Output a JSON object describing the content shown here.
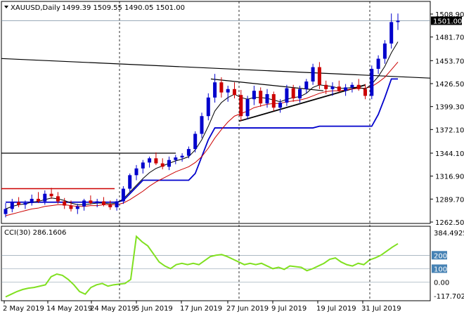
{
  "symbol_label": "XAUUSD,Daily",
  "ohlc_label": "1499.39 1509.55 1490.05 1501.00",
  "current_price": "1501.00",
  "cci_label": "CCI(30) 286.1606",
  "price_axis": [
    "1508.90",
    "1481.70",
    "1453.70",
    "1426.50",
    "1399.30",
    "1372.10",
    "1344.10",
    "1316.90",
    "1289.70",
    "1262.50"
  ],
  "cci_axis": [
    "384.4925",
    "200",
    "100",
    "0.00",
    "-117.702"
  ],
  "date_axis": [
    "2 May 2019",
    "14 May 2019",
    "24 May 2019",
    "5 Jun 2019",
    "17 Jun 2019",
    "27 Jun 2019",
    "9 Jul 2019",
    "19 Jul 2019",
    "31 Jul 2019"
  ],
  "colors": {
    "bull": "#0000cc",
    "bear": "#cc0000",
    "cci": "#80e020",
    "ma_fast": "#000000",
    "ma_slow": "#cc0000",
    "support": "#0000cc",
    "hline": "#000000",
    "redline": "#cc0000"
  },
  "chart_data": [
    {
      "type": "candlestick",
      "title": "XAUUSD,Daily",
      "ylim": [
        1262.5,
        1508.9
      ],
      "x": [
        "2 May 2019",
        "14 May 2019",
        "24 May 2019",
        "5 Jun 2019",
        "17 Jun 2019",
        "27 Jun 2019",
        "9 Jul 2019",
        "19 Jul 2019",
        "31 Jul 2019"
      ],
      "candles": [
        [
          1272,
          1285,
          1268,
          1278
        ],
        [
          1278,
          1290,
          1274,
          1286
        ],
        [
          1286,
          1292,
          1280,
          1283
        ],
        [
          1283,
          1288,
          1278,
          1285
        ],
        [
          1285,
          1295,
          1282,
          1290
        ],
        [
          1290,
          1298,
          1285,
          1287
        ],
        [
          1287,
          1300,
          1283,
          1296
        ],
        [
          1296,
          1303,
          1290,
          1293
        ],
        [
          1293,
          1298,
          1284,
          1287
        ],
        [
          1287,
          1291,
          1278,
          1282
        ],
        [
          1282,
          1288,
          1275,
          1278
        ],
        [
          1278,
          1284,
          1272,
          1281
        ],
        [
          1281,
          1290,
          1276,
          1288
        ],
        [
          1288,
          1294,
          1283,
          1285
        ],
        [
          1285,
          1290,
          1280,
          1287
        ],
        [
          1287,
          1292,
          1281,
          1283
        ],
        [
          1283,
          1288,
          1277,
          1280
        ],
        [
          1280,
          1290,
          1276,
          1287
        ],
        [
          1287,
          1305,
          1284,
          1302
        ],
        [
          1302,
          1320,
          1298,
          1318
        ],
        [
          1318,
          1330,
          1312,
          1326
        ],
        [
          1326,
          1336,
          1320,
          1333
        ],
        [
          1333,
          1340,
          1327,
          1338
        ],
        [
          1338,
          1345,
          1330,
          1332
        ],
        [
          1332,
          1338,
          1325,
          1328
        ],
        [
          1328,
          1340,
          1324,
          1336
        ],
        [
          1336,
          1342,
          1331,
          1339
        ],
        [
          1339,
          1344,
          1334,
          1341
        ],
        [
          1341,
          1352,
          1338,
          1349
        ],
        [
          1349,
          1370,
          1345,
          1367
        ],
        [
          1367,
          1392,
          1362,
          1388
        ],
        [
          1388,
          1415,
          1383,
          1410
        ],
        [
          1410,
          1438,
          1404,
          1428
        ],
        [
          1428,
          1434,
          1410,
          1416
        ],
        [
          1416,
          1424,
          1405,
          1420
        ],
        [
          1420,
          1428,
          1409,
          1413
        ],
        [
          1413,
          1419,
          1382,
          1388
        ],
        [
          1388,
          1412,
          1384,
          1408
        ],
        [
          1408,
          1424,
          1401,
          1418
        ],
        [
          1418,
          1422,
          1399,
          1403
        ],
        [
          1403,
          1420,
          1398,
          1414
        ],
        [
          1414,
          1417,
          1394,
          1398
        ],
        [
          1398,
          1408,
          1392,
          1404
        ],
        [
          1404,
          1425,
          1400,
          1421
        ],
        [
          1421,
          1425,
          1405,
          1409
        ],
        [
          1409,
          1424,
          1404,
          1420
        ],
        [
          1420,
          1432,
          1415,
          1429
        ],
        [
          1429,
          1450,
          1425,
          1446
        ],
        [
          1446,
          1452,
          1420,
          1425
        ],
        [
          1425,
          1430,
          1414,
          1420
        ],
        [
          1420,
          1428,
          1412,
          1423
        ],
        [
          1423,
          1430,
          1416,
          1418
        ],
        [
          1418,
          1426,
          1412,
          1422
        ],
        [
          1422,
          1428,
          1416,
          1425
        ],
        [
          1425,
          1432,
          1418,
          1420
        ],
        [
          1420,
          1426,
          1408,
          1412
        ],
        [
          1412,
          1448,
          1408,
          1444
        ],
        [
          1444,
          1460,
          1438,
          1456
        ],
        [
          1456,
          1478,
          1450,
          1474
        ],
        [
          1474,
          1509.55,
          1468,
          1499.39
        ],
        [
          1499.39,
          1509.55,
          1490.05,
          1501
        ]
      ],
      "ma_fast": [
        1278,
        1281,
        1283,
        1284,
        1286,
        1287,
        1289,
        1291,
        1290,
        1288,
        1285,
        1283,
        1283,
        1284,
        1285,
        1285,
        1284,
        1285,
        1290,
        1298,
        1306,
        1314,
        1321,
        1326,
        1329,
        1332,
        1335,
        1337,
        1340,
        1348,
        1360,
        1376,
        1394,
        1404,
        1410,
        1414,
        1410,
        1408,
        1410,
        1410,
        1409,
        1407,
        1405,
        1408,
        1410,
        1411,
        1415,
        1422,
        1425,
        1424,
        1423,
        1421,
        1421,
        1422,
        1422,
        1420,
        1426,
        1435,
        1447,
        1463,
        1476
      ],
      "ma_slow": [
        1270,
        1272,
        1274,
        1276,
        1278,
        1279,
        1281,
        1282,
        1283,
        1283,
        1282,
        1281,
        1281,
        1282,
        1282,
        1283,
        1283,
        1283,
        1285,
        1289,
        1294,
        1299,
        1305,
        1310,
        1314,
        1318,
        1322,
        1325,
        1328,
        1333,
        1340,
        1350,
        1362,
        1372,
        1381,
        1388,
        1391,
        1394,
        1398,
        1400,
        1402,
        1403,
        1403,
        1405,
        1406,
        1407,
        1409,
        1412,
        1415,
        1417,
        1418,
        1418,
        1419,
        1420,
        1421,
        1421,
        1423,
        1428,
        1434,
        1443,
        1452
      ],
      "support_line": [
        1286,
        1286,
        1286,
        1286,
        1286,
        1286,
        1286,
        1286,
        1286,
        1286,
        1286,
        1286,
        1286,
        1286,
        1286,
        1286,
        1286,
        1286,
        1288,
        1296,
        1304,
        1312,
        1312,
        1312,
        1312,
        1312,
        1312,
        1312,
        1312,
        1320,
        1340,
        1360,
        1374,
        1374,
        1374,
        1374,
        1374,
        1374,
        1374,
        1374,
        1374,
        1374,
        1374,
        1374,
        1374,
        1374,
        1374,
        1374,
        1376,
        1376,
        1376,
        1376,
        1376,
        1376,
        1376,
        1376,
        1376,
        1390,
        1410,
        1432,
        1432
      ]
    },
    {
      "type": "line",
      "title": "CCI(30) 286.1606",
      "ylim": [
        -117.702,
        384.4925
      ],
      "series": [
        {
          "values": [
            -110,
            -90,
            -70,
            -55,
            -45,
            -40,
            -30,
            -20,
            40,
            60,
            50,
            20,
            -20,
            -70,
            -90,
            -40,
            -20,
            -10,
            -30,
            -20,
            -15,
            -10,
            20,
            340,
            300,
            270,
            210,
            150,
            120,
            100,
            130,
            140,
            130,
            140,
            130,
            160,
            190,
            200,
            205,
            190,
            170,
            150,
            130,
            140,
            130,
            140,
            120,
            100,
            110,
            95,
            120,
            115,
            110,
            85,
            100,
            120,
            140,
            170,
            180,
            150,
            130,
            120,
            140,
            130,
            165,
            180,
            200,
            230,
            260,
            286
          ]
        }
      ]
    }
  ]
}
